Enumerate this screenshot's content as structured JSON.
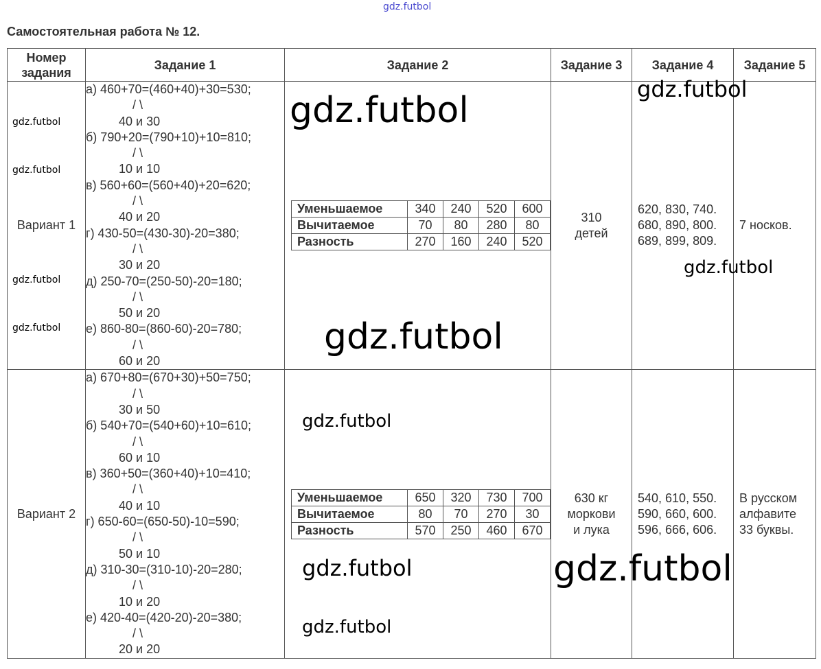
{
  "title": "Самостоятельная работа № 12.",
  "watermark": "gdz.futbol",
  "headers": [
    "Номер задания",
    "Задание 1",
    "Задание 2",
    "Задание 3",
    "Задание 4",
    "Задание 5"
  ],
  "variants": [
    {
      "name": "Вариант 1",
      "task1": [
        {
          "eq": "а) 460+70=(460+40)+30=530;",
          "slash": "/  \\",
          "split": "40 и 30"
        },
        {
          "eq": "б) 790+20=(790+10)+10=810;",
          "slash": "/  \\",
          "split": "10 и 10"
        },
        {
          "eq": "в) 560+60=(560+40)+20=620;",
          "slash": "/  \\",
          "split": "40 и 20"
        },
        {
          "eq": "г) 430-50=(430-30)-20=380;",
          "slash": "/  \\",
          "split": "30 и 20"
        },
        {
          "eq": "д) 250-70=(250-50)-20=180;",
          "slash": "/  \\",
          "split": "50 и 20"
        },
        {
          "eq": "е) 860-80=(860-60)-20=780;",
          "slash": "/  \\",
          "split": "60 и 20"
        }
      ],
      "task2": [
        {
          "label": "Уменьшаемое",
          "values": [
            "340",
            "240",
            "520",
            "600"
          ]
        },
        {
          "label": "Вычитаемое",
          "values": [
            "70",
            "80",
            "280",
            "80"
          ]
        },
        {
          "label": "Разность",
          "values": [
            "270",
            "160",
            "240",
            "520"
          ]
        }
      ],
      "task3": [
        "310",
        "детей"
      ],
      "task4": [
        "620, 830, 740.",
        "680, 890, 800.",
        "689, 899, 809."
      ],
      "task5": [
        "7 носков."
      ]
    },
    {
      "name": "Вариант 2",
      "task1": [
        {
          "eq": "а) 670+80=(670+30)+50=750;",
          "slash": "/  \\",
          "split": "30 и 50"
        },
        {
          "eq": "б) 540+70=(540+60)+10=610;",
          "slash": "/  \\",
          "split": "60 и 10"
        },
        {
          "eq": "в) 360+50=(360+40)+10=410;",
          "slash": "/  \\",
          "split": "40 и 10"
        },
        {
          "eq": "г) 650-60=(650-50)-10=590;",
          "slash": "/  \\",
          "split": "50 и 10"
        },
        {
          "eq": "д) 310-30=(310-10)-20=280;",
          "slash": "/  \\",
          "split": "10 и 20"
        },
        {
          "eq": "е) 420-40=(420-20)-20=380;",
          "slash": "/  \\",
          "split": "20 и 20"
        }
      ],
      "task2": [
        {
          "label": "Уменьшаемое",
          "values": [
            "650",
            "320",
            "730",
            "700"
          ]
        },
        {
          "label": "Вычитаемое",
          "values": [
            "80",
            "70",
            "270",
            "30"
          ]
        },
        {
          "label": "Разность",
          "values": [
            "570",
            "250",
            "460",
            "670"
          ]
        }
      ],
      "task3": [
        "630 кг",
        "моркови",
        "и лука"
      ],
      "task4": [
        "540, 610, 550.",
        "590, 660, 600.",
        "596, 666, 606."
      ],
      "task5": [
        "В русском",
        "алфавите",
        "33 буквы."
      ]
    }
  ]
}
